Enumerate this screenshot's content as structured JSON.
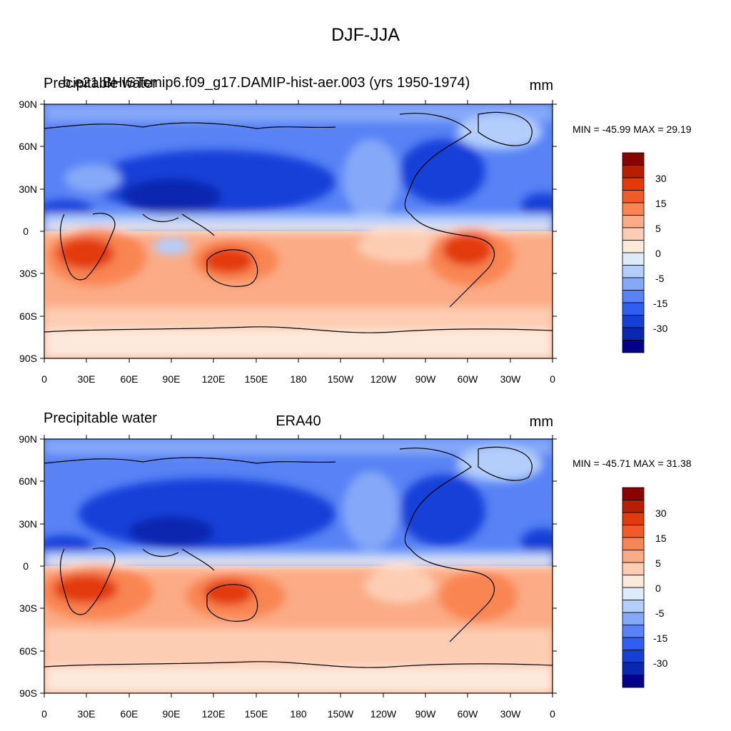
{
  "page_title": "DJF-JJA",
  "axis": {
    "lat_labels": [
      "90N",
      "60N",
      "30N",
      "0",
      "30S",
      "60S",
      "90S"
    ],
    "lon_labels": [
      "0",
      "30E",
      "60E",
      "90E",
      "120E",
      "150E",
      "180",
      "150W",
      "120W",
      "90W",
      "60W",
      "30W",
      "0"
    ]
  },
  "panels": [
    {
      "left_title_a": "Precipitable water",
      "left_title_b": "b.e21.BHISTcmip6.f09_g17.DAMIP-hist-aer.003 (yrs 1950-1974)",
      "center_title": "",
      "units": "mm",
      "stats": "MIN = -45.99 MAX =  29.19"
    },
    {
      "left_title_a": "Precipitable water",
      "left_title_b": "",
      "center_title": "ERA40",
      "units": "mm",
      "stats": "MIN = -45.71 MAX =  31.38"
    }
  ],
  "colorbar": {
    "labels": [
      "30",
      "15",
      "5",
      "0",
      "-5",
      "-15",
      "-30"
    ],
    "colors": [
      "#8b0000",
      "#b81f00",
      "#e33a0c",
      "#f25a28",
      "#f98553",
      "#fbab86",
      "#fdcdb3",
      "#fde9dc",
      "#dcebfa",
      "#b3cefb",
      "#85a8f8",
      "#5882f5",
      "#2f5ef0",
      "#1440d8",
      "#0828b0",
      "#00008b"
    ]
  },
  "map_colors": {
    "neg_strong": "#0828b0",
    "neg_mid": "#2f5ef0",
    "neg_weak": "#85a8f8",
    "neg_light": "#b3cefb",
    "pos_light": "#fde9dc",
    "pos_weak": "#fdcdb3",
    "pos_mid": "#fbab86",
    "pos_strong": "#f25a28",
    "pos_max": "#e33a0c"
  }
}
